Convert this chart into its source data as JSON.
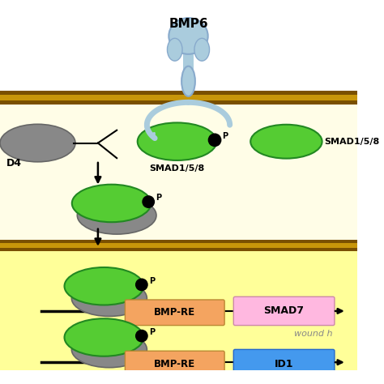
{
  "bg_extracell": "#ffffff",
  "bg_cytoplasm": "#fffde7",
  "bg_nucleus": "#ffff99",
  "membrane_gold": "#c8960a",
  "membrane_brown": "#7a5000",
  "green_ellipse": "#55cc33",
  "gray_ellipse": "#888888",
  "bmp_re_color": "#f4a460",
  "smad7_color": "#ffb8e0",
  "id1_color": "#4499ee",
  "receptor_blue": "#aaccdd",
  "receptor_dark": "#88aacc",
  "title": "BMP6",
  "smad158_label": "SMAD1/5/8",
  "smad7_label": "SMAD7",
  "id1_label": "ID1",
  "bmpre_label": "BMP-RE",
  "wound_label": "wound h",
  "p_label": "P",
  "d4_label": "D4"
}
